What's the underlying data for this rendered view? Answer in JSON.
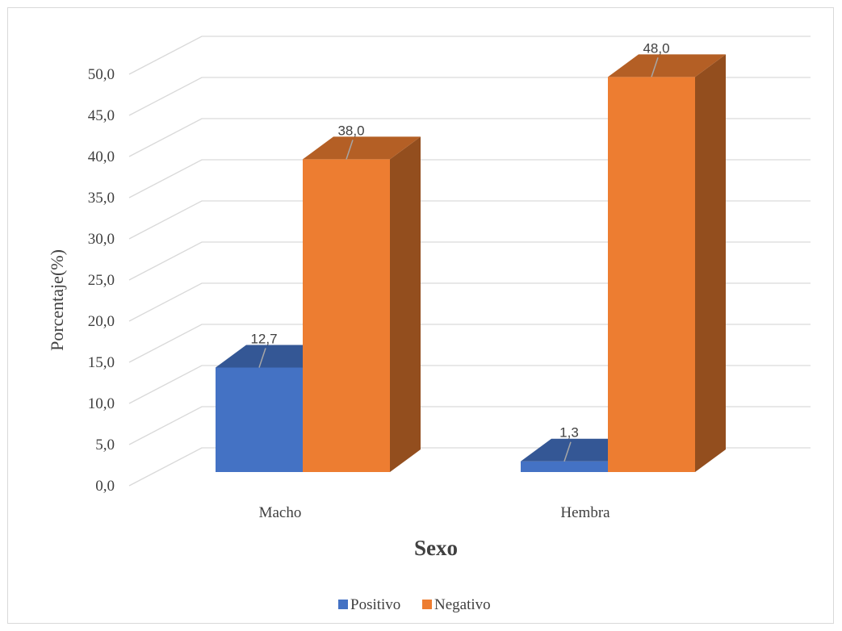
{
  "chart_data": {
    "type": "bar",
    "categories": [
      "Macho",
      "Hembra"
    ],
    "series": [
      {
        "name": "Positivo",
        "values": [
          12.7,
          1.3
        ],
        "labels": [
          "12,7",
          "1,3"
        ],
        "color": "#4472c4"
      },
      {
        "name": "Negativo",
        "values": [
          38.0,
          48.0
        ],
        "labels": [
          "38,0",
          "48,0"
        ],
        "color": "#ed7d31"
      }
    ],
    "ylim": [
      0,
      50
    ],
    "yticks": [
      "0,0",
      "5,0",
      "10,0",
      "15,0",
      "20,0",
      "25,0",
      "30,0",
      "35,0",
      "40,0",
      "45,0",
      "50,0"
    ],
    "ylabel": "Porcentaje(%)",
    "xlabel": "Sexo",
    "grid": true,
    "three_d": true,
    "legend": "bottom"
  }
}
